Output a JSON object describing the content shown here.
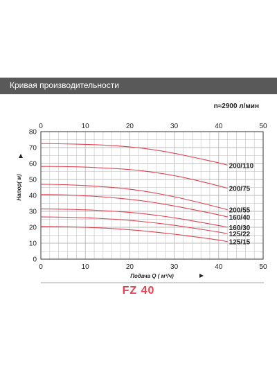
{
  "header": {
    "title": "Кривая производительности",
    "speed": "n≈2900 л/мин"
  },
  "model": "FZ 40",
  "colors": {
    "curve": "#e8404f",
    "grid": "#b9b9b9",
    "header": "#595959"
  },
  "chart_data": {
    "type": "line",
    "xlabel": "Подача Q ( м³/ч)",
    "ylabel": "Напор( м)",
    "xlim": [
      0,
      50
    ],
    "ylim": [
      0,
      80
    ],
    "xticks": [
      0,
      10,
      20,
      30,
      40,
      50
    ],
    "yticks": [
      0,
      10,
      20,
      30,
      40,
      50,
      60,
      70,
      80
    ],
    "grid": true,
    "series": [
      {
        "name": "200/110",
        "x": [
          0,
          5,
          10,
          15,
          20,
          25,
          30,
          35,
          40,
          42
        ],
        "y": [
          72.5,
          72.4,
          72,
          71.5,
          70.5,
          68.9,
          66.5,
          63.5,
          60.5,
          59
        ]
      },
      {
        "name": "200/75",
        "x": [
          0,
          5,
          10,
          15,
          20,
          25,
          30,
          35,
          40,
          42
        ],
        "y": [
          58.2,
          58.1,
          57.8,
          57.1,
          56.3,
          54.7,
          52.5,
          49.5,
          46,
          44.5
        ]
      },
      {
        "name": "200/55",
        "x": [
          0,
          5,
          10,
          15,
          20,
          25,
          30,
          35,
          40,
          42
        ],
        "y": [
          47,
          46.8,
          46.2,
          45.3,
          44,
          41.9,
          39.2,
          36,
          32.5,
          31
        ]
      },
      {
        "name": "160/40",
        "x": [
          0,
          5,
          10,
          15,
          20,
          25,
          30,
          35,
          40,
          42
        ],
        "y": [
          40.5,
          40.4,
          39.8,
          38.9,
          37.6,
          35.8,
          33.4,
          30.7,
          27.8,
          26.5
        ]
      },
      {
        "name": "160/30",
        "x": [
          0,
          5,
          10,
          15,
          20,
          25,
          30,
          35,
          40,
          42
        ],
        "y": [
          31.5,
          31.4,
          31,
          30.3,
          29.4,
          27.9,
          26,
          23.6,
          21.1,
          20
        ]
      },
      {
        "name": "125/22",
        "x": [
          0,
          5,
          10,
          15,
          20,
          25,
          30,
          35,
          40,
          42
        ],
        "y": [
          26.5,
          26.4,
          26,
          25.3,
          24.4,
          23,
          21.3,
          19.2,
          17,
          16
        ]
      },
      {
        "name": "125/15",
        "x": [
          0,
          5,
          10,
          15,
          20,
          25,
          30,
          35,
          40,
          42
        ],
        "y": [
          20.5,
          20.4,
          20,
          19.4,
          18.5,
          17.2,
          15.7,
          13.9,
          12,
          11
        ]
      }
    ]
  }
}
